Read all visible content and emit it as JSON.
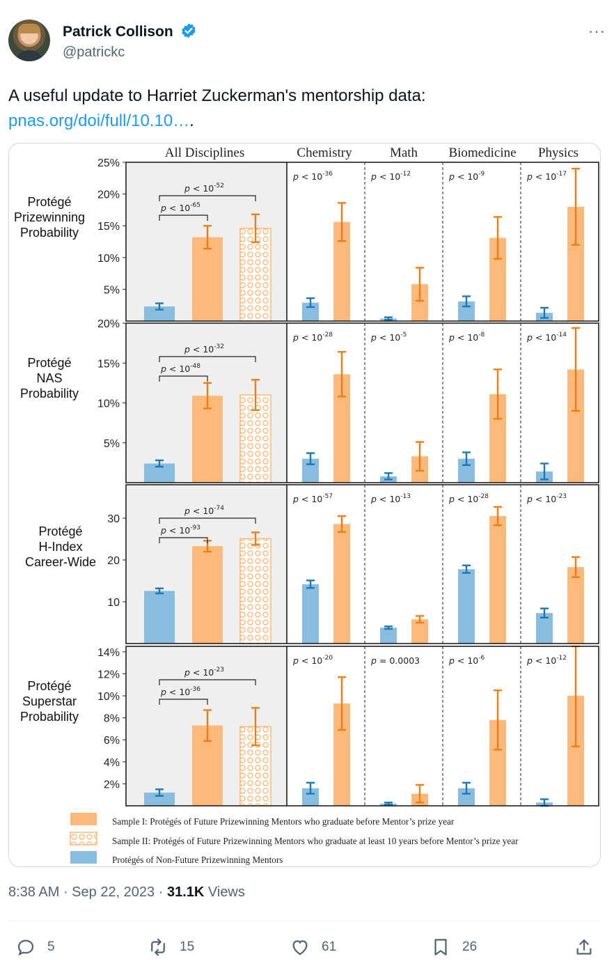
{
  "tweet": {
    "author_name": "Patrick Collison",
    "handle": "@patrickc",
    "text_part1": "A useful update to Harriet Zuckerman's mentorship data:",
    "link_text": "pnas.org/doi/full/10.10…",
    "text_part2": ".",
    "time": "8:38 AM",
    "date": "Sep 22, 2023",
    "views_count": "31.1K",
    "views_label": "Views",
    "more_label": "···"
  },
  "actions": {
    "replies": "5",
    "reposts": "15",
    "likes": "61",
    "bookmarks": "26"
  },
  "icons": [
    "verified-icon",
    "more-icon",
    "reply-icon",
    "repost-icon",
    "like-icon",
    "bookmark-icon",
    "share-icon"
  ],
  "colors": {
    "blue_bar": "#88bde0",
    "blue_err": "#1f77b4",
    "orange_bar": "#fdb97a",
    "orange_err": "#ee7d12",
    "panel_bg": "#efefef",
    "link": "#1d9bf0"
  },
  "chart_data": {
    "type": "bar",
    "columns": [
      "All Disciplines",
      "Chemistry",
      "Math",
      "Biomedicine",
      "Physics"
    ],
    "legend": [
      {
        "key": "sample1",
        "label": "Sample I: Protégés of Future Prizewinning Mentors who graduate before Mentor’s prize year"
      },
      {
        "key": "sample2",
        "label": "Sample II: Protégés of Future Prizewinning Mentors who graduate at least 10 years before Mentor’s prize year"
      },
      {
        "key": "control",
        "label": "Protégés of Non-Future Prizewinning Mentors"
      }
    ],
    "rows": [
      {
        "label": [
          "Protégé",
          "Prizewinning",
          "Probability"
        ],
        "ylim": [
          0,
          25
        ],
        "ticks": [
          5,
          10,
          15,
          20,
          25
        ],
        "tick_labels": [
          "5%",
          "10%",
          "15%",
          "20%",
          "25%"
        ],
        "all": {
          "control": 2.3,
          "control_err": 0.5,
          "sample1": 13.2,
          "sample1_err": 1.8,
          "sample2": 14.6,
          "sample2_err": 2.2,
          "p_outer": "p < 10^{-52}",
          "p_inner": "p < 10^{-65}"
        },
        "disciplines": [
          {
            "control": 2.9,
            "control_err": 0.7,
            "sample1": 15.6,
            "sample1_err": 3.0,
            "p": "p < 10^{-36}"
          },
          {
            "control": 0.4,
            "control_err": 0.2,
            "sample1": 5.8,
            "sample1_err": 2.6,
            "p": "p < 10^{-12}"
          },
          {
            "control": 3.1,
            "control_err": 0.8,
            "sample1": 13.1,
            "sample1_err": 3.3,
            "p": "p < 10^{-9}"
          },
          {
            "control": 1.3,
            "control_err": 0.8,
            "sample1": 18.0,
            "sample1_err": 6.0,
            "p": "p < 10^{-17}"
          }
        ]
      },
      {
        "label": [
          "Protégé",
          "NAS",
          "Probability"
        ],
        "ylim": [
          0,
          20
        ],
        "ticks": [
          5,
          10,
          15,
          20
        ],
        "tick_labels": [
          "5%",
          "10%",
          "15%",
          "20%"
        ],
        "all": {
          "control": 2.4,
          "control_err": 0.4,
          "sample1": 10.9,
          "sample1_err": 1.6,
          "sample2": 11.0,
          "sample2_err": 1.9,
          "p_outer": "p < 10^{-32}",
          "p_inner": "p < 10^{-48}"
        },
        "disciplines": [
          {
            "control": 3.0,
            "control_err": 0.7,
            "sample1": 13.6,
            "sample1_err": 2.8,
            "p": "p < 10^{-28}"
          },
          {
            "control": 0.8,
            "control_err": 0.4,
            "sample1": 3.3,
            "sample1_err": 1.8,
            "p": "p < 10^{-5}"
          },
          {
            "control": 3.0,
            "control_err": 0.8,
            "sample1": 11.1,
            "sample1_err": 3.1,
            "p": "p < 10^{-8}"
          },
          {
            "control": 1.4,
            "control_err": 1.0,
            "sample1": 14.2,
            "sample1_err": 5.2,
            "p": "p < 10^{-14}"
          }
        ]
      },
      {
        "label": [
          "Protégé",
          "H-Index",
          "Career-Wide"
        ],
        "ylim": [
          0,
          38
        ],
        "ticks": [
          10,
          20,
          30
        ],
        "tick_labels": [
          "10",
          "20",
          "30"
        ],
        "all": {
          "control": 12.6,
          "control_err": 0.6,
          "sample1": 23.3,
          "sample1_err": 1.3,
          "sample2": 25.1,
          "sample2_err": 1.5,
          "p_outer": "p < 10^{-74}",
          "p_inner": "p < 10^{-93}"
        },
        "disciplines": [
          {
            "control": 14.2,
            "control_err": 0.9,
            "sample1": 28.6,
            "sample1_err": 1.9,
            "p": "p < 10^{-57}"
          },
          {
            "control": 3.8,
            "control_err": 0.3,
            "sample1": 5.8,
            "sample1_err": 0.8,
            "p": "p < 10^{-13}"
          },
          {
            "control": 17.8,
            "control_err": 0.9,
            "sample1": 30.5,
            "sample1_err": 2.2,
            "p": "p < 10^{-28}"
          },
          {
            "control": 7.3,
            "control_err": 1.1,
            "sample1": 18.3,
            "sample1_err": 2.4,
            "p": "p < 10^{-23}"
          }
        ]
      },
      {
        "label": [
          "Protégé",
          "Superstar",
          "Probability"
        ],
        "ylim": [
          0,
          14.5
        ],
        "ticks": [
          2,
          4,
          6,
          8,
          10,
          12,
          14
        ],
        "tick_labels": [
          "2%",
          "4%",
          "6%",
          "8%",
          "10%",
          "12%",
          "14%"
        ],
        "all": {
          "control": 1.2,
          "control_err": 0.3,
          "sample1": 7.3,
          "sample1_err": 1.4,
          "sample2": 7.2,
          "sample2_err": 1.7,
          "p_outer": "p < 10^{-23}",
          "p_inner": "p < 10^{-36}"
        },
        "disciplines": [
          {
            "control": 1.6,
            "control_err": 0.5,
            "sample1": 9.3,
            "sample1_err": 2.4,
            "p": "p < 10^{-20}"
          },
          {
            "control": 0.2,
            "control_err": 0.1,
            "sample1": 1.1,
            "sample1_err": 0.8,
            "p": "p = 0.0003"
          },
          {
            "control": 1.6,
            "control_err": 0.5,
            "sample1": 7.8,
            "sample1_err": 2.7,
            "p": "p < 10^{-6}"
          },
          {
            "control": 0.3,
            "control_err": 0.3,
            "sample1": 10.0,
            "sample1_err": 4.6,
            "p": "p < 10^{-12}"
          }
        ]
      }
    ]
  }
}
